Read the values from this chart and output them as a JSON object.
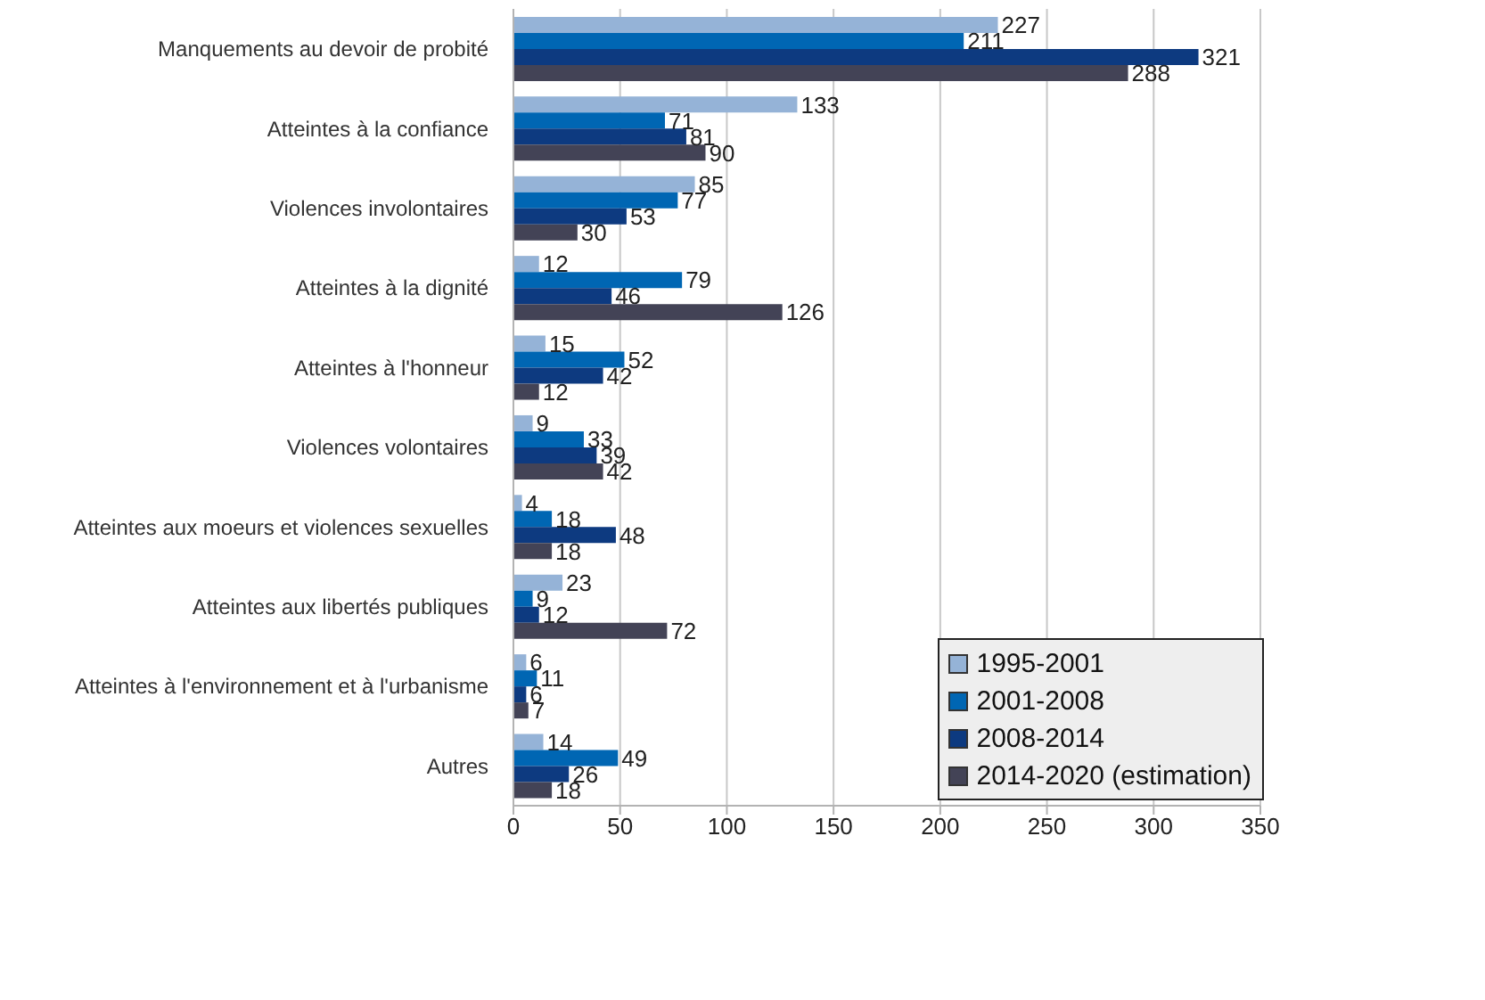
{
  "chart_data": {
    "type": "bar",
    "orientation": "horizontal",
    "categories": [
      "Manquements au devoir de probité",
      "Atteintes à la confiance",
      "Violences involontaires",
      "Atteintes à la dignité",
      "Atteintes à l'honneur",
      "Violences volontaires",
      "Atteintes aux moeurs et violences sexuelles",
      "Atteintes aux libertés publiques",
      "Atteintes à l'environnement et à l'urbanisme",
      "Autres"
    ],
    "series": [
      {
        "name": "1995-2001",
        "color": "#95b3d7",
        "values": [
          227,
          133,
          85,
          12,
          15,
          9,
          4,
          23,
          6,
          14
        ]
      },
      {
        "name": "2001-2008",
        "color": "#0066b3",
        "values": [
          211,
          71,
          77,
          79,
          52,
          33,
          18,
          9,
          11,
          49
        ]
      },
      {
        "name": "2008-2014",
        "color": "#0d3a80",
        "values": [
          321,
          81,
          53,
          46,
          42,
          39,
          48,
          12,
          6,
          26
        ]
      },
      {
        "name": "2014-2020 (estimation)",
        "color": "#434356",
        "values": [
          288,
          90,
          30,
          126,
          12,
          42,
          18,
          72,
          7,
          18
        ]
      }
    ],
    "xlim": [
      0,
      350
    ],
    "xticks": [
      0,
      50,
      100,
      150,
      200,
      250,
      300,
      350
    ],
    "grid": "x",
    "legend": "bottom right",
    "data_labels": true
  }
}
